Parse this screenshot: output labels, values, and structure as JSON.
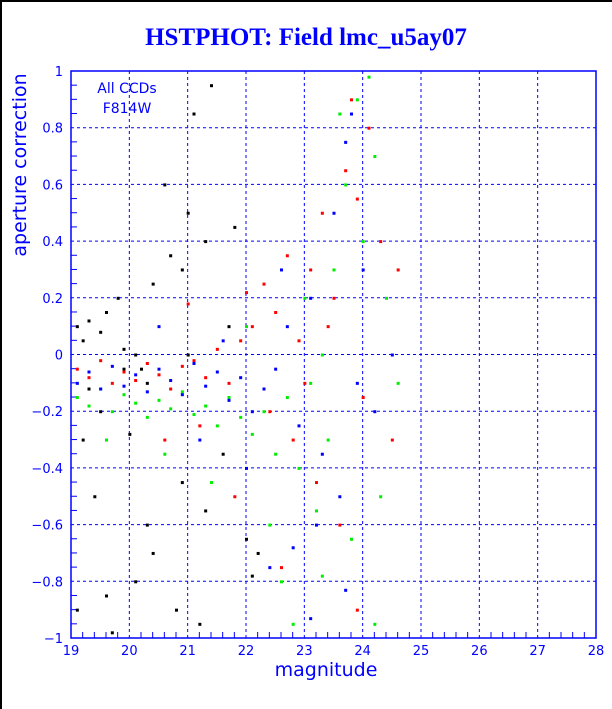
{
  "chart_data": {
    "type": "scatter",
    "title": "HSTPHOT: Field lmc_u5ay07",
    "xlabel": "magnitude",
    "ylabel": "aperture correction",
    "xlim": [
      19,
      28
    ],
    "ylim": [
      -1,
      1
    ],
    "xticks": [
      "19",
      "20",
      "21",
      "22",
      "23",
      "24",
      "25",
      "26",
      "27",
      "28"
    ],
    "yticks": [
      "-1",
      "-0.8",
      "-0.6",
      "-0.4",
      "-0.2",
      "0",
      "0.2",
      "0.4",
      "0.6",
      "0.8",
      "1"
    ],
    "grid": true,
    "annotation": [
      "All CCDs",
      "F814W"
    ],
    "series": [
      {
        "name": "black",
        "color": "#000000",
        "points": [
          [
            19.1,
            0.1
          ],
          [
            19.2,
            0.05
          ],
          [
            19.3,
            0.12
          ],
          [
            19.5,
            0.08
          ],
          [
            19.6,
            0.15
          ],
          [
            19.8,
            0.2
          ],
          [
            19.9,
            0.02
          ],
          [
            20.1,
            0.0
          ],
          [
            20.2,
            -0.05
          ],
          [
            20.4,
            0.25
          ],
          [
            20.6,
            0.6
          ],
          [
            20.9,
            0.3
          ],
          [
            21.0,
            0.5
          ],
          [
            21.4,
            0.95
          ],
          [
            21.1,
            0.85
          ],
          [
            21.3,
            0.4
          ],
          [
            21.8,
            0.45
          ],
          [
            20.7,
            0.35
          ],
          [
            19.2,
            -0.3
          ],
          [
            19.4,
            -0.5
          ],
          [
            19.6,
            -0.85
          ],
          [
            19.7,
            -0.98
          ],
          [
            20.1,
            -0.8
          ],
          [
            20.4,
            -0.7
          ],
          [
            20.8,
            -0.9
          ],
          [
            21.2,
            -0.95
          ],
          [
            22.1,
            -0.78
          ],
          [
            21.3,
            -0.55
          ],
          [
            20.9,
            -0.45
          ],
          [
            22.0,
            -0.65
          ],
          [
            21.6,
            -0.35
          ],
          [
            19.3,
            -0.12
          ],
          [
            19.5,
            -0.2
          ],
          [
            20.0,
            -0.28
          ],
          [
            20.3,
            -0.1
          ],
          [
            21.7,
            0.1
          ],
          [
            22.2,
            -0.7
          ],
          [
            19.1,
            -0.9
          ],
          [
            20.3,
            -0.6
          ],
          [
            21.0,
            0.0
          ],
          [
            19.9,
            -0.05
          ]
        ]
      },
      {
        "name": "red",
        "color": "#ff0000",
        "points": [
          [
            19.1,
            -0.05
          ],
          [
            19.3,
            -0.08
          ],
          [
            19.5,
            -0.02
          ],
          [
            19.7,
            -0.1
          ],
          [
            19.9,
            -0.06
          ],
          [
            20.1,
            -0.09
          ],
          [
            20.3,
            -0.03
          ],
          [
            20.5,
            -0.07
          ],
          [
            20.7,
            -0.12
          ],
          [
            20.9,
            -0.04
          ],
          [
            21.1,
            -0.02
          ],
          [
            21.3,
            -0.08
          ],
          [
            21.5,
            0.02
          ],
          [
            21.7,
            -0.1
          ],
          [
            21.9,
            0.05
          ],
          [
            22.1,
            0.1
          ],
          [
            22.3,
            0.25
          ],
          [
            22.5,
            0.15
          ],
          [
            22.7,
            0.35
          ],
          [
            22.9,
            0.05
          ],
          [
            23.1,
            0.3
          ],
          [
            23.3,
            0.5
          ],
          [
            23.5,
            0.2
          ],
          [
            23.7,
            0.65
          ],
          [
            23.9,
            0.55
          ],
          [
            24.1,
            0.8
          ],
          [
            23.8,
            0.9
          ],
          [
            24.3,
            0.4
          ],
          [
            22.4,
            -0.2
          ],
          [
            22.8,
            -0.3
          ],
          [
            23.2,
            -0.45
          ],
          [
            23.6,
            -0.6
          ],
          [
            21.8,
            -0.5
          ],
          [
            22.6,
            -0.75
          ],
          [
            24.0,
            -0.15
          ],
          [
            24.5,
            -0.3
          ],
          [
            21.2,
            -0.25
          ],
          [
            20.6,
            -0.3
          ],
          [
            23.0,
            -0.1
          ],
          [
            23.4,
            0.1
          ],
          [
            24.6,
            0.3
          ],
          [
            22.0,
            0.22
          ],
          [
            21.0,
            0.18
          ],
          [
            23.9,
            -0.9
          ]
        ]
      },
      {
        "name": "green",
        "color": "#00ee00",
        "points": [
          [
            19.1,
            -0.15
          ],
          [
            19.3,
            -0.18
          ],
          [
            19.5,
            -0.12
          ],
          [
            19.7,
            -0.2
          ],
          [
            19.9,
            -0.14
          ],
          [
            20.1,
            -0.17
          ],
          [
            20.3,
            -0.22
          ],
          [
            20.5,
            -0.16
          ],
          [
            20.7,
            -0.19
          ],
          [
            20.9,
            -0.13
          ],
          [
            21.1,
            -0.21
          ],
          [
            21.3,
            -0.18
          ],
          [
            21.5,
            -0.25
          ],
          [
            21.7,
            -0.15
          ],
          [
            21.9,
            -0.22
          ],
          [
            22.1,
            -0.28
          ],
          [
            22.3,
            -0.2
          ],
          [
            22.5,
            -0.35
          ],
          [
            22.7,
            -0.15
          ],
          [
            22.9,
            -0.4
          ],
          [
            23.1,
            -0.1
          ],
          [
            23.3,
            0.0
          ],
          [
            23.5,
            0.3
          ],
          [
            23.7,
            0.6
          ],
          [
            23.9,
            0.9
          ],
          [
            24.1,
            0.98
          ],
          [
            23.6,
            0.85
          ],
          [
            24.2,
            0.7
          ],
          [
            24.4,
            0.2
          ],
          [
            24.6,
            -0.1
          ],
          [
            24.3,
            -0.5
          ],
          [
            23.8,
            -0.65
          ],
          [
            23.2,
            -0.55
          ],
          [
            22.6,
            -0.8
          ],
          [
            22.8,
            -0.95
          ],
          [
            24.2,
            -0.95
          ],
          [
            21.4,
            -0.45
          ],
          [
            20.6,
            -0.35
          ],
          [
            19.6,
            -0.3
          ],
          [
            22.0,
            0.1
          ],
          [
            23.0,
            0.2
          ],
          [
            22.4,
            -0.6
          ],
          [
            23.4,
            -0.3
          ],
          [
            24.0,
            0.4
          ],
          [
            23.3,
            -0.78
          ]
        ]
      },
      {
        "name": "blue",
        "color": "#0000ff",
        "points": [
          [
            19.1,
            -0.1
          ],
          [
            19.3,
            -0.06
          ],
          [
            19.5,
            -0.12
          ],
          [
            19.7,
            -0.04
          ],
          [
            19.9,
            -0.11
          ],
          [
            20.1,
            -0.07
          ],
          [
            20.3,
            -0.13
          ],
          [
            20.5,
            -0.05
          ],
          [
            20.7,
            -0.09
          ],
          [
            20.9,
            -0.14
          ],
          [
            21.1,
            -0.03
          ],
          [
            21.3,
            -0.11
          ],
          [
            21.5,
            -0.06
          ],
          [
            21.7,
            -0.16
          ],
          [
            21.9,
            -0.08
          ],
          [
            22.1,
            -0.2
          ],
          [
            22.3,
            -0.12
          ],
          [
            22.5,
            -0.05
          ],
          [
            22.7,
            0.1
          ],
          [
            22.9,
            -0.25
          ],
          [
            23.1,
            0.2
          ],
          [
            23.3,
            -0.35
          ],
          [
            23.5,
            0.5
          ],
          [
            23.7,
            0.75
          ],
          [
            23.8,
            0.85
          ],
          [
            24.0,
            0.3
          ],
          [
            24.2,
            -0.2
          ],
          [
            23.6,
            -0.5
          ],
          [
            23.2,
            -0.6
          ],
          [
            22.8,
            -0.68
          ],
          [
            22.4,
            -0.75
          ],
          [
            23.1,
            -0.93
          ],
          [
            23.7,
            -0.83
          ],
          [
            21.2,
            -0.3
          ],
          [
            22.0,
            -0.4
          ],
          [
            24.5,
            0.0
          ],
          [
            21.6,
            0.05
          ],
          [
            20.5,
            0.1
          ],
          [
            23.9,
            -0.1
          ],
          [
            22.6,
            0.3
          ]
        ]
      }
    ]
  }
}
